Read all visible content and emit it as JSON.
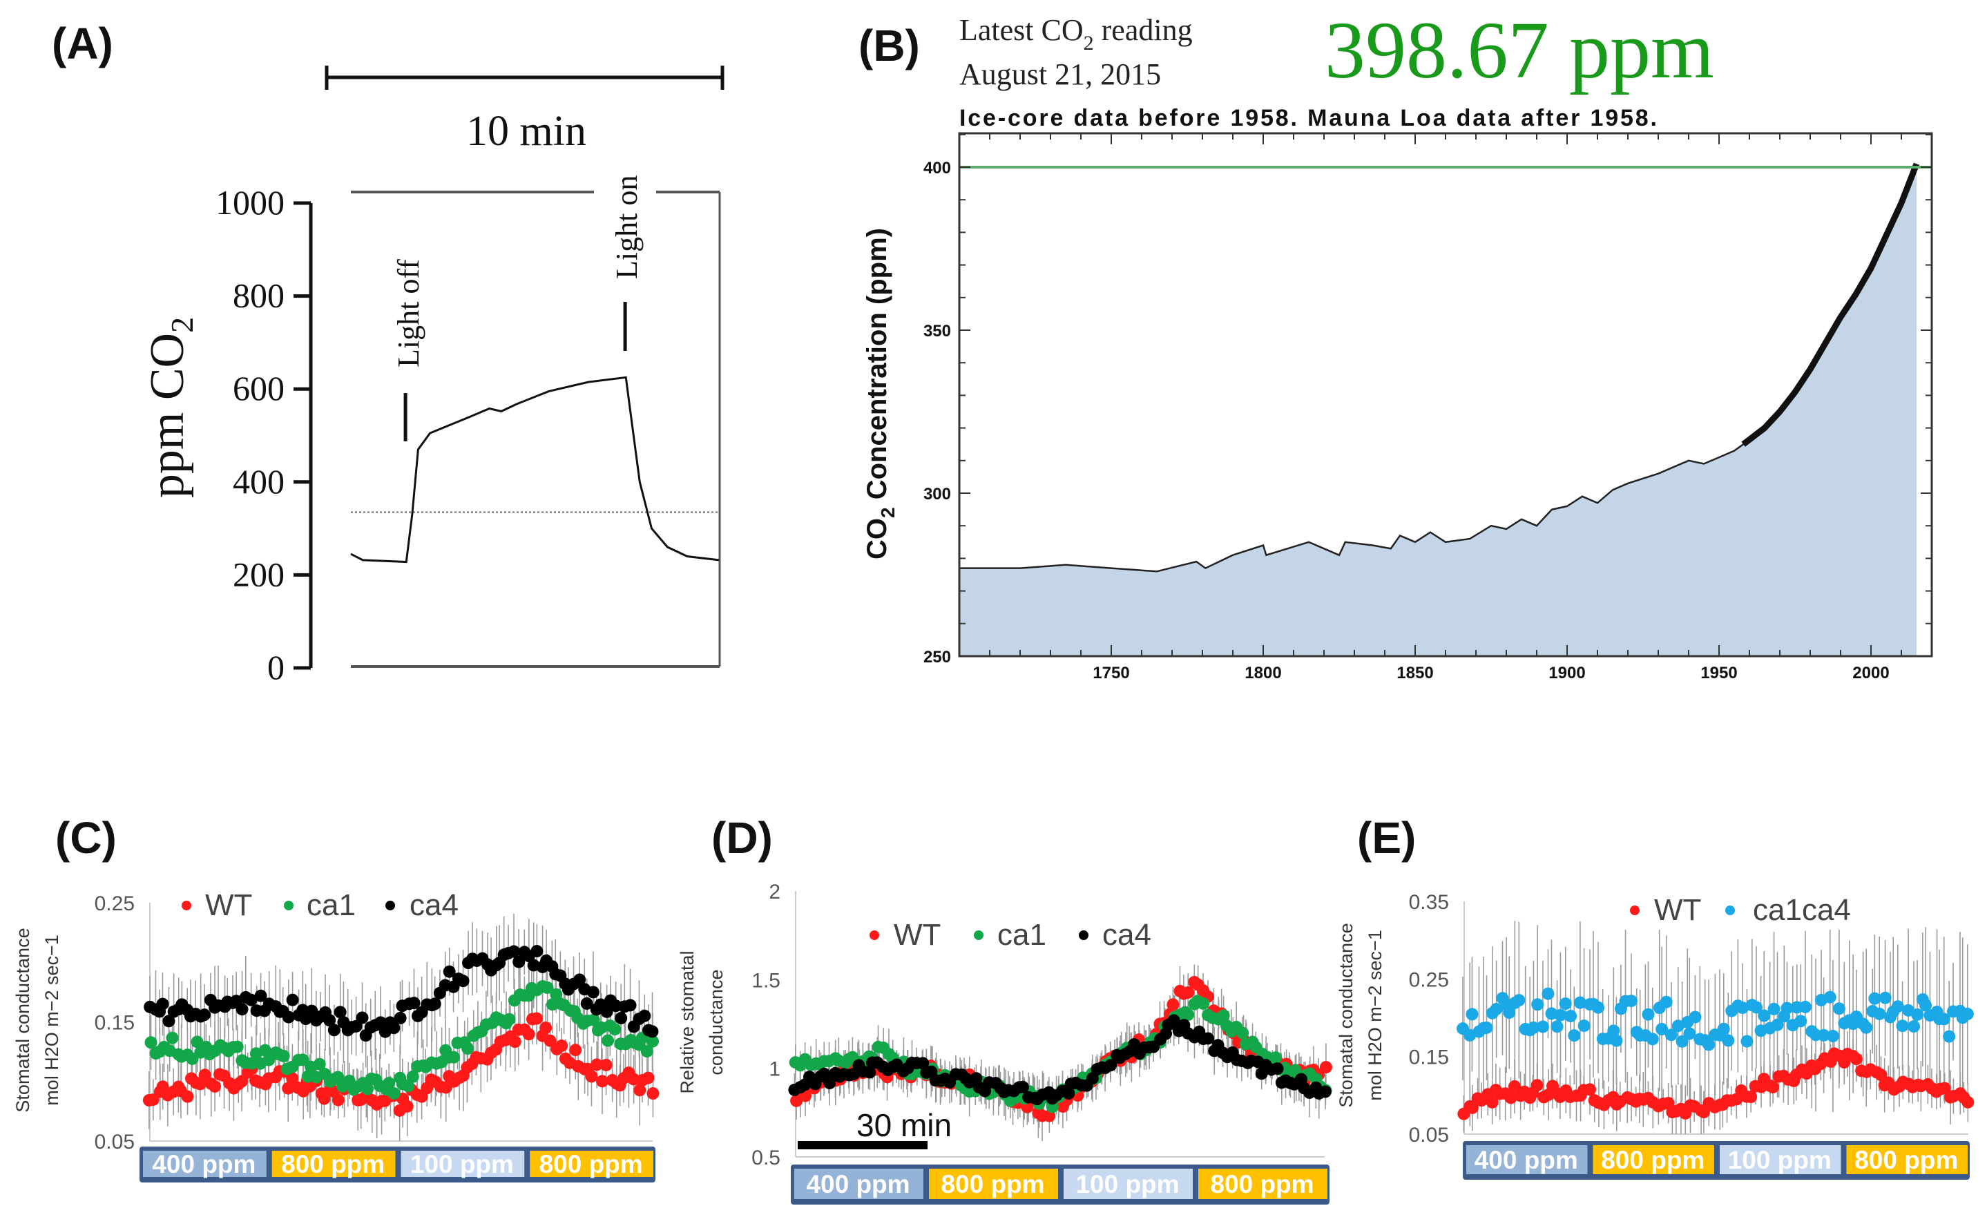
{
  "panels": {
    "a": {
      "label": "(A)"
    },
    "b": {
      "label": "(B)"
    },
    "c": {
      "label": "(C)"
    },
    "d": {
      "label": "(D)"
    },
    "e": {
      "label": "(E)"
    }
  },
  "colors": {
    "wt": "#ff1a1a",
    "ca1": "#12a84a",
    "ca4": "#000000",
    "ca1ca4": "#1aa8e6",
    "bar_400": "#95b3d7",
    "bar_800": "#ffc000",
    "bar_100": "#c6d9f1",
    "bar_border": "#3b5a8a",
    "b_fill": "#c5d5e8",
    "b_line_400": "#5aaa6a",
    "b_reading": "#1a9a1a",
    "errbar": "#9a9a9a"
  },
  "co2_bars": [
    "400 ppm",
    "800 ppm",
    "100 ppm",
    "800 ppm"
  ],
  "co2_bars_e": [
    "400 ppm",
    "800 ppm",
    "100 ppm",
    "800 ppm"
  ],
  "chart_data": [
    {
      "id": "A",
      "type": "line",
      "ylabel": [
        "ppm CO",
        "2"
      ],
      "yticks": [
        "0",
        "200",
        "400",
        "600",
        "800",
        "1000"
      ],
      "ylim": [
        0,
        1000
      ],
      "scale_bar": "10 min",
      "annotations": {
        "light_off": "Light off",
        "light_on": "Light on",
        "light_off_min": 1.38,
        "light_on_min": 6.93
      },
      "reference_line_ppm": 335,
      "x_unit": "min",
      "x": [
        0,
        0.3,
        1.4,
        1.55,
        1.7,
        2.0,
        3.0,
        3.5,
        3.8,
        4.2,
        5.0,
        6.0,
        6.95,
        7.05,
        7.3,
        7.6,
        8.0,
        8.5,
        9.3
      ],
      "y": [
        245,
        232,
        228,
        330,
        470,
        505,
        540,
        558,
        552,
        568,
        595,
        615,
        625,
        560,
        400,
        300,
        260,
        240,
        232
      ]
    },
    {
      "id": "B",
      "type": "area",
      "header": {
        "line1": [
          "Latest CO",
          "2",
          " reading"
        ],
        "line2": "August 21, 2015",
        "reading": "398.67 ppm"
      },
      "title": "Ice-core data before 1958. Mauna Loa data after 1958.",
      "ylabel": [
        "CO",
        "2",
        " Concentration (ppm)"
      ],
      "yticks": [
        "250",
        "300",
        "350",
        "400"
      ],
      "xticks": [
        "1750",
        "1800",
        "1850",
        "1900",
        "1950",
        "2000"
      ],
      "xlim": [
        1700,
        2020
      ],
      "ylim": [
        250,
        410
      ],
      "reference_line": 400,
      "x": [
        1700,
        1720,
        1735,
        1750,
        1765,
        1778,
        1781,
        1790,
        1800,
        1801,
        1815,
        1825,
        1827,
        1836,
        1842,
        1845,
        1850,
        1855,
        1860,
        1868,
        1875,
        1880,
        1885,
        1890,
        1895,
        1900,
        1905,
        1910,
        1915,
        1920,
        1930,
        1940,
        1945,
        1950,
        1955,
        1958,
        1965,
        1970,
        1975,
        1980,
        1985,
        1990,
        1995,
        2000,
        2005,
        2010,
        2015
      ],
      "y": [
        277,
        277,
        278,
        277,
        276,
        279,
        277,
        281,
        284,
        281,
        285,
        281,
        285,
        284,
        283,
        287,
        285,
        288,
        285,
        286,
        290,
        289,
        292,
        290,
        295,
        296,
        299,
        297,
        301,
        303,
        306,
        310,
        309,
        311,
        313,
        315,
        320,
        325,
        331,
        338,
        346,
        354,
        361,
        369,
        379,
        389,
        401
      ]
    },
    {
      "id": "C",
      "type": "scatter",
      "ylabel": [
        "Stomatal conductance",
        "mol H2O m−2 sec−1"
      ],
      "yticks": [
        "0.05",
        "0.15",
        "0.25"
      ],
      "ylim": [
        0.05,
        0.25
      ],
      "x_unit": "relative time (0–100)",
      "x": [
        0,
        4,
        8,
        12,
        16,
        20,
        24,
        28,
        32,
        36,
        40,
        44,
        48,
        52,
        56,
        60,
        64,
        68,
        72,
        76,
        80,
        84,
        88,
        92,
        96,
        100
      ],
      "series": [
        {
          "name": "WT",
          "sd": 0.025,
          "values": [
            0.085,
            0.09,
            0.095,
            0.1,
            0.1,
            0.105,
            0.105,
            0.1,
            0.095,
            0.09,
            0.09,
            0.085,
            0.08,
            0.085,
            0.095,
            0.105,
            0.115,
            0.125,
            0.135,
            0.15,
            0.135,
            0.12,
            0.11,
            0.105,
            0.1,
            0.095
          ]
        },
        {
          "name": "ca1",
          "sd": 0.025,
          "values": [
            0.13,
            0.13,
            0.125,
            0.13,
            0.125,
            0.12,
            0.125,
            0.115,
            0.11,
            0.105,
            0.1,
            0.095,
            0.095,
            0.105,
            0.115,
            0.125,
            0.135,
            0.145,
            0.16,
            0.18,
            0.17,
            0.155,
            0.145,
            0.14,
            0.135,
            0.13
          ]
        },
        {
          "name": "ca4",
          "sd": 0.03,
          "values": [
            0.155,
            0.16,
            0.16,
            0.165,
            0.165,
            0.17,
            0.16,
            0.16,
            0.155,
            0.15,
            0.15,
            0.145,
            0.15,
            0.16,
            0.17,
            0.185,
            0.195,
            0.2,
            0.21,
            0.205,
            0.19,
            0.18,
            0.17,
            0.165,
            0.155,
            0.145
          ]
        }
      ]
    },
    {
      "id": "D",
      "type": "scatter",
      "ylabel": [
        "Relative stomatal",
        "conductance"
      ],
      "yticks": [
        "0.5",
        "1",
        "1.5",
        "2"
      ],
      "ylim": [
        0.5,
        2
      ],
      "scale_bar": "30 min",
      "x": [
        0,
        4,
        8,
        12,
        16,
        20,
        24,
        28,
        32,
        36,
        40,
        44,
        48,
        52,
        56,
        60,
        64,
        68,
        72,
        76,
        80,
        84,
        88,
        92,
        96,
        100
      ],
      "series": [
        {
          "name": "WT",
          "sd": 0.12,
          "values": [
            0.8,
            0.9,
            0.95,
            1.0,
            1.0,
            0.95,
            1.0,
            0.95,
            0.95,
            0.9,
            0.85,
            0.8,
            0.75,
            0.85,
            0.95,
            1.05,
            1.1,
            1.2,
            1.4,
            1.5,
            1.3,
            1.15,
            1.05,
            1.0,
            0.95,
            1.0
          ]
        },
        {
          "name": "ca1",
          "sd": 0.12,
          "values": [
            1.0,
            1.05,
            1.05,
            1.05,
            1.1,
            1.0,
            1.0,
            0.95,
            0.9,
            0.9,
            0.85,
            0.85,
            0.8,
            0.9,
            0.95,
            1.05,
            1.1,
            1.15,
            1.3,
            1.35,
            1.3,
            1.2,
            1.1,
            1.0,
            0.95,
            0.9
          ]
        },
        {
          "name": "ca4",
          "sd": 0.12,
          "values": [
            0.9,
            0.95,
            0.95,
            1.0,
            1.0,
            1.0,
            1.0,
            0.95,
            0.95,
            0.9,
            0.9,
            0.85,
            0.85,
            0.9,
            0.95,
            1.05,
            1.1,
            1.15,
            1.25,
            1.2,
            1.1,
            1.05,
            1.0,
            0.95,
            0.9,
            0.85
          ]
        }
      ]
    },
    {
      "id": "E",
      "type": "scatter",
      "ylabel": [
        "Stomatal conductance",
        "mol H2O m−2 sec−1"
      ],
      "yticks": [
        "0.05",
        "0.15",
        "0.25",
        "0.35"
      ],
      "ylim": [
        0.05,
        0.35
      ],
      "x": [
        0,
        4,
        8,
        12,
        16,
        20,
        24,
        28,
        32,
        36,
        40,
        44,
        48,
        52,
        56,
        60,
        64,
        68,
        72,
        76,
        80,
        84,
        88,
        92,
        96,
        100
      ],
      "series": [
        {
          "name": "WT",
          "sd": 0.03,
          "values": [
            0.085,
            0.095,
            0.1,
            0.105,
            0.105,
            0.105,
            0.105,
            0.095,
            0.09,
            0.09,
            0.085,
            0.085,
            0.08,
            0.09,
            0.1,
            0.115,
            0.12,
            0.13,
            0.145,
            0.15,
            0.13,
            0.115,
            0.11,
            0.105,
            0.1,
            0.1
          ]
        },
        {
          "name": "ca1ca4",
          "sd": 0.09,
          "values": [
            0.2,
            0.2,
            0.205,
            0.205,
            0.205,
            0.2,
            0.2,
            0.195,
            0.195,
            0.195,
            0.195,
            0.19,
            0.19,
            0.195,
            0.195,
            0.195,
            0.2,
            0.2,
            0.2,
            0.2,
            0.205,
            0.205,
            0.205,
            0.205,
            0.2,
            0.2
          ]
        }
      ]
    }
  ]
}
